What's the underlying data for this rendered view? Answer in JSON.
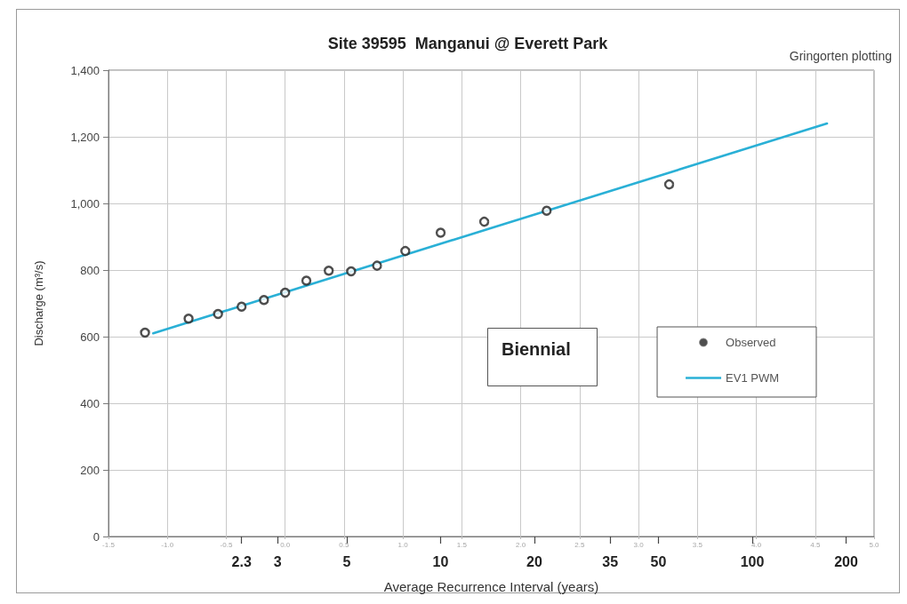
{
  "chart_data": {
    "type": "scatter",
    "title": "Site 39595  Manganui @ Everett Park",
    "ylabel": "Discharge (m³/s)",
    "x2label": "Average Recurrence Interval (years)",
    "annotations": [
      "Gringorten plotting",
      "Biennial"
    ],
    "series": [
      {
        "name": "Observed",
        "marker": "circle",
        "color": "#222222",
        "x": [
          -1.19,
          -0.82,
          -0.57,
          -0.37,
          -0.18,
          0.0,
          0.18,
          0.37,
          0.56,
          0.78,
          1.02,
          1.32,
          1.69,
          2.22,
          3.26
        ],
        "values": [
          612,
          654,
          668,
          690,
          710,
          732,
          768,
          798,
          796,
          813,
          857,
          912,
          945,
          978,
          1057
        ]
      },
      {
        "name": "EV1 PWM",
        "type": "line",
        "marker": "none",
        "color": "#2ab0d6",
        "x": [
          -1.12,
          4.6
        ],
        "values": [
          610,
          1240
        ]
      }
    ],
    "xlim": [
      -1.5,
      5
    ],
    "xticks": [
      {
        "value": -1.5,
        "label": "-1.5"
      },
      {
        "value": -1,
        "label": "-1.0"
      },
      {
        "value": -0.5,
        "label": "-0.5"
      },
      {
        "value": 0,
        "label": "0.0"
      },
      {
        "value": 0.5,
        "label": "0.5"
      },
      {
        "value": 1,
        "label": "1.0"
      },
      {
        "value": 1.5,
        "label": "1.5"
      },
      {
        "value": 2,
        "label": "2.0"
      },
      {
        "value": 2.5,
        "label": "2.5"
      },
      {
        "value": 3,
        "label": "3.0"
      },
      {
        "value": 3.5,
        "label": "3.5"
      },
      {
        "value": 4,
        "label": "4.0"
      },
      {
        "value": 4.5,
        "label": "4.5"
      },
      {
        "value": 5,
        "label": "5.0"
      }
    ],
    "x2lim": [
      0.86,
      246
    ],
    "x2ticks": [
      2.3,
      3,
      5,
      10,
      20,
      35,
      50,
      100,
      200
    ],
    "log": "x2",
    "ylim": [
      0,
      1400
    ],
    "yticks": [
      0,
      200,
      400,
      600,
      800,
      {
        "value": 1000,
        "label": "1,000"
      },
      {
        "value": 1200,
        "label": "1,200"
      },
      {
        "value": 1400,
        "label": "1,400"
      }
    ],
    "grid": true,
    "legend": "right"
  }
}
